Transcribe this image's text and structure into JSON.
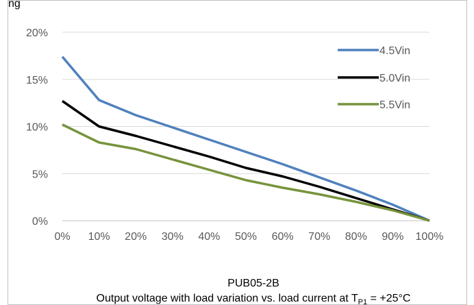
{
  "top_fragment": "ng",
  "chart_data": {
    "type": "line",
    "x": [
      "0%",
      "10%",
      "20%",
      "30%",
      "40%",
      "50%",
      "60%",
      "70%",
      "80%",
      "90%",
      "100%"
    ],
    "x_values": [
      0,
      10,
      20,
      30,
      40,
      50,
      60,
      70,
      80,
      90,
      100
    ],
    "y_ticks": [
      "0%",
      "5%",
      "10%",
      "15%",
      "20%"
    ],
    "ylim": [
      0,
      20
    ],
    "xlim": [
      0,
      100
    ],
    "grid": "horizontal",
    "legend_position": "top-right",
    "series": [
      {
        "name": "4.5Vin",
        "color": "#4f81bd",
        "values": [
          17.4,
          12.8,
          11.2,
          9.9,
          8.6,
          7.3,
          6.0,
          4.6,
          3.2,
          1.7,
          0.0
        ]
      },
      {
        "name": "5.0Vin",
        "color": "#000000",
        "values": [
          12.7,
          10.0,
          9.0,
          7.9,
          6.8,
          5.6,
          4.7,
          3.6,
          2.4,
          1.2,
          0.0
        ]
      },
      {
        "name": "5.5Vin",
        "color": "#77933c",
        "values": [
          10.2,
          8.3,
          7.6,
          6.5,
          5.4,
          4.3,
          3.5,
          2.8,
          2.0,
          1.1,
          0.0
        ]
      }
    ]
  },
  "caption": {
    "line1": "PUB05-2B",
    "line2_main": "Output voltage with load variation vs. load current at T",
    "line2_sub": "P1",
    "line2_end": " = +25°C"
  }
}
